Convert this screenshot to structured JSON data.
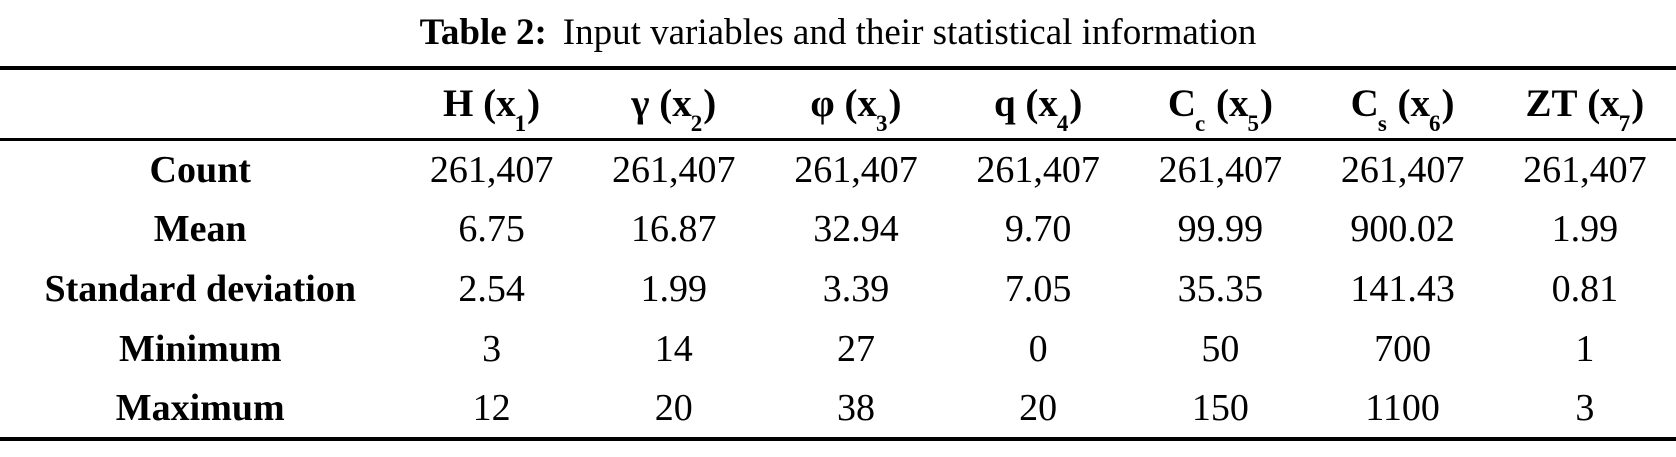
{
  "caption": {
    "label": "Table 2:",
    "text": "Input variables and their statistical information"
  },
  "table": {
    "corner_label": "",
    "columns": [
      {
        "base": "H",
        "base_sub": "",
        "open_paren": "(",
        "var": "x",
        "var_sub": "1",
        "close_paren": ")"
      },
      {
        "base": "γ",
        "base_sub": "",
        "open_paren": "(",
        "var": "x",
        "var_sub": "2",
        "close_paren": ")"
      },
      {
        "base": "φ",
        "base_sub": "",
        "open_paren": "(",
        "var": "x",
        "var_sub": "3",
        "close_paren": ")"
      },
      {
        "base": "q",
        "base_sub": "",
        "open_paren": "(",
        "var": "x",
        "var_sub": "4",
        "close_paren": ")"
      },
      {
        "base": "C",
        "base_sub": "c",
        "open_paren": "(",
        "var": "x",
        "var_sub": "5",
        "close_paren": ")"
      },
      {
        "base": "C",
        "base_sub": "s",
        "open_paren": "(",
        "var": "x",
        "var_sub": "6",
        "close_paren": ")"
      },
      {
        "base": "ZT",
        "base_sub": "",
        "open_paren": "(",
        "var": "x",
        "var_sub": "7",
        "close_paren": ")"
      }
    ],
    "rows": [
      {
        "label": "Count",
        "values": [
          "261,407",
          "261,407",
          "261,407",
          "261,407",
          "261,407",
          "261,407",
          "261,407"
        ]
      },
      {
        "label": "Mean",
        "values": [
          "6.75",
          "16.87",
          "32.94",
          "9.70",
          "99.99",
          "900.02",
          "1.99"
        ]
      },
      {
        "label": "Standard deviation",
        "values": [
          "2.54",
          "1.99",
          "3.39",
          "7.05",
          "35.35",
          "141.43",
          "0.81"
        ]
      },
      {
        "label": "Minimum",
        "values": [
          "3",
          "14",
          "27",
          "0",
          "50",
          "700",
          "1"
        ]
      },
      {
        "label": "Maximum",
        "values": [
          "12",
          "20",
          "38",
          "20",
          "150",
          "1100",
          "3"
        ]
      }
    ]
  },
  "colors": {
    "text": "#000000",
    "background": "#ffffff",
    "rule": "#000000"
  }
}
